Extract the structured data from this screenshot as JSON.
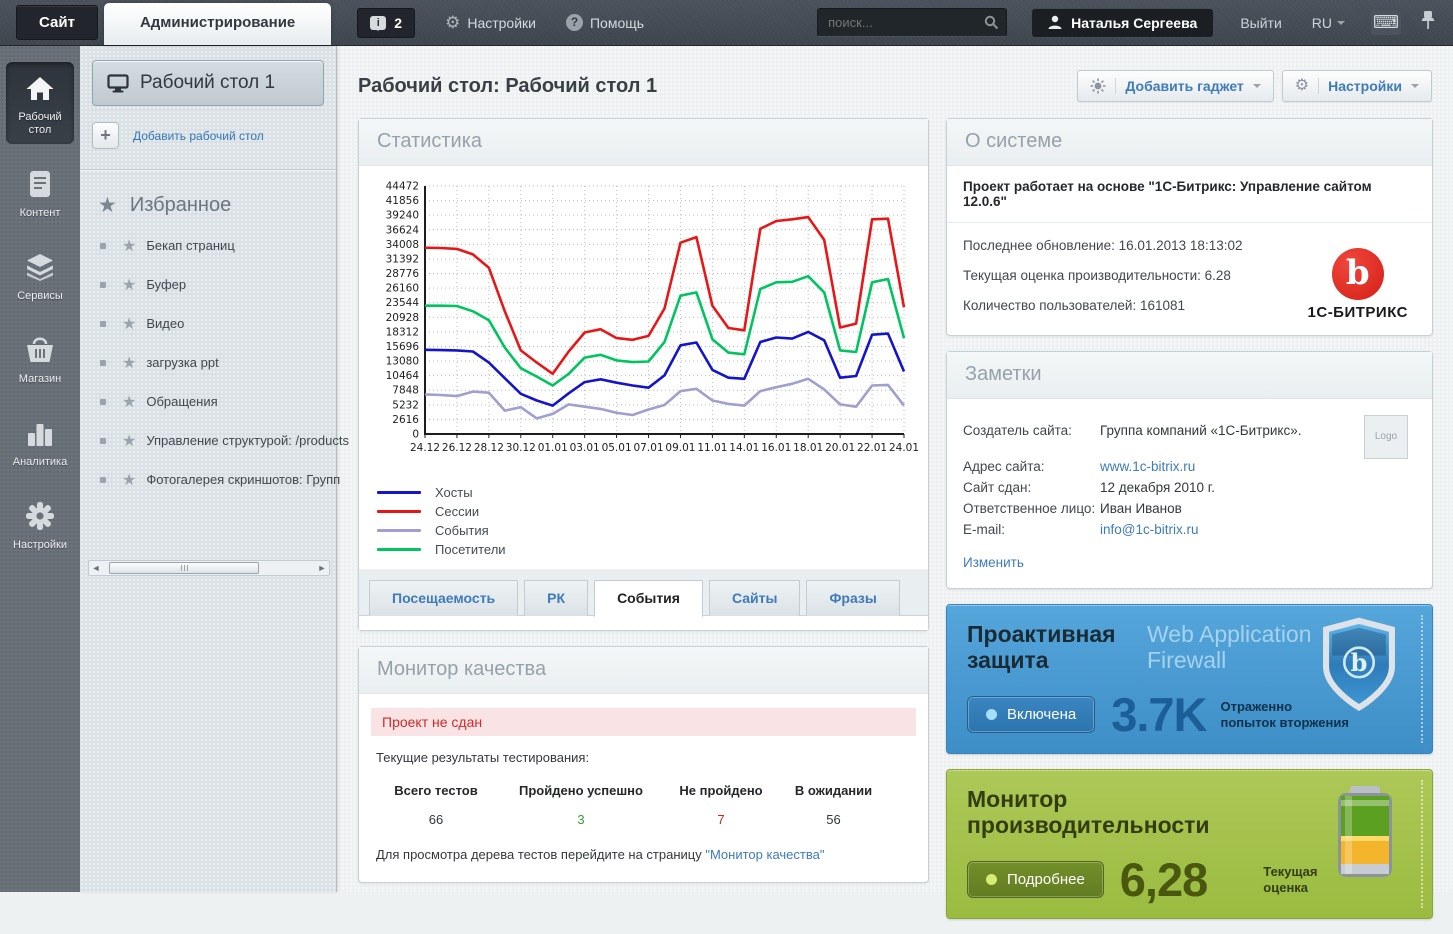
{
  "topbar": {
    "site_tab": "Сайт",
    "admin_tab": "Администрирование",
    "notifications_count": "2",
    "settings_label": "Настройки",
    "help_label": "Помощь",
    "search_placeholder": "поиск...",
    "user_name": "Наталья Сергеева",
    "logout_label": "Выйти",
    "lang_label": "RU"
  },
  "rail": {
    "items": [
      {
        "label": "Рабочий стол",
        "icon": "desktop-icon",
        "active": true
      },
      {
        "label": "Контент",
        "icon": "content-icon",
        "active": false
      },
      {
        "label": "Сервисы",
        "icon": "services-icon",
        "active": false
      },
      {
        "label": "Магазин",
        "icon": "shop-icon",
        "active": false
      },
      {
        "label": "Аналитика",
        "icon": "analytics-icon",
        "active": false
      },
      {
        "label": "Настройки",
        "icon": "settings-icon",
        "active": false
      }
    ]
  },
  "sidebar": {
    "desktop_name": "Рабочий стол 1",
    "add_desktop_label": "Добавить рабочий стол",
    "favorites_title": "Избранное",
    "favorites": [
      "Бекап страниц",
      "Буфер",
      "Видео",
      "загрузка ppt",
      "Обращения",
      "Управление структурой: /products",
      "Фотогалерея скриншотов: Групп"
    ]
  },
  "page": {
    "title": "Рабочий стол: Рабочий стол 1",
    "add_gadget_label": "Добавить гаджет",
    "settings_label": "Настройки"
  },
  "stats_widget": {
    "title": "Статистика",
    "tabs": [
      {
        "label": "Посещаемость",
        "active": false
      },
      {
        "label": "РК",
        "active": false
      },
      {
        "label": "События",
        "active": true
      },
      {
        "label": "Сайты",
        "active": false
      },
      {
        "label": "Фразы",
        "active": false
      }
    ]
  },
  "chart_data": {
    "type": "line",
    "title": "Статистика",
    "xlabel": "",
    "ylabel": "",
    "ylim": [
      0,
      44472
    ],
    "ytick_step": 2616,
    "grid": "dotted",
    "legend_position": "bottom-left",
    "x_labels": [
      "24.12",
      "26.12",
      "28.12",
      "30.12",
      "01.01",
      "03.01",
      "05.01",
      "07.01",
      "09.01",
      "11.01",
      "14.01",
      "16.01",
      "18.01",
      "20.01",
      "22.01",
      "24.01"
    ],
    "points_per_label_gap": 2,
    "series": [
      {
        "name": "Хосты",
        "color": "#1414cc",
        "values": [
          15100,
          15050,
          15000,
          14800,
          12800,
          10000,
          7200,
          6000,
          5100,
          7300,
          9300,
          9800,
          9200,
          8700,
          8300,
          10500,
          15900,
          16400,
          11500,
          10100,
          9900,
          16500,
          17300,
          17100,
          18300,
          16800,
          10100,
          10400,
          17800,
          18000,
          11200
        ]
      },
      {
        "name": "Сессии",
        "color": "#e81717",
        "values": [
          33400,
          33350,
          33200,
          32200,
          29800,
          22000,
          15000,
          12800,
          10800,
          14800,
          18200,
          18800,
          17200,
          16900,
          17600,
          22500,
          34300,
          35300,
          23000,
          19000,
          18600,
          36800,
          38200,
          38500,
          38900,
          34800,
          19100,
          19800,
          38500,
          38600,
          22700
        ]
      },
      {
        "name": "События",
        "color": "#9f9fd0",
        "values": [
          7100,
          7000,
          6800,
          7600,
          7400,
          4200,
          4800,
          2800,
          3600,
          5300,
          4900,
          4500,
          3800,
          3400,
          4400,
          5200,
          7700,
          8100,
          6000,
          5400,
          5100,
          7700,
          8400,
          9000,
          9900,
          8000,
          5300,
          4900,
          8700,
          8800,
          5100
        ]
      },
      {
        "name": "Посетители",
        "color": "#00c45e",
        "values": [
          23000,
          23000,
          22950,
          22000,
          20400,
          15500,
          11800,
          10300,
          8700,
          10800,
          13700,
          14200,
          13200,
          12900,
          13000,
          16500,
          24800,
          25400,
          17000,
          14600,
          14300,
          26000,
          27200,
          27300,
          28300,
          25400,
          15000,
          14700,
          27200,
          27800,
          17200
        ]
      }
    ]
  },
  "about_widget": {
    "title": "О системе",
    "line_bold": "Проект работает на основе \"1С-Битрикс: Управление сайтом 12.0.6\"",
    "rows": [
      "Последнее обновление: 16.01.2013 18:13:02",
      "Текущая оценка производительности: 6.28",
      "Количество пользователей: 161081"
    ],
    "logo_letter": "b",
    "brand": "1С-БИТРИКС",
    "brand_color": "#d9261c"
  },
  "notes_widget": {
    "title": "Заметки",
    "rows": [
      {
        "label": "Создатель сайта:",
        "value": "Группа компаний «1С-Битрикс».",
        "link": false,
        "first": true
      },
      {
        "label": "Адрес сайта:",
        "value": "www.1c-bitrix.ru",
        "link": true,
        "first": false
      },
      {
        "label": "Сайт сдан:",
        "value": "12 декабря 2010 г.",
        "link": false,
        "first": false
      },
      {
        "label": "Ответственное лицо:",
        "value": "Иван Иванов",
        "link": false,
        "first": false
      },
      {
        "label": "E-mail:",
        "value": "info@1c-bitrix.ru",
        "link": true,
        "first": false
      }
    ],
    "logo_placeholder": "Logo",
    "edit_label": "Изменить"
  },
  "security_widget": {
    "title": "Проактивная защита",
    "subtitle": "Web Application Firewall",
    "status_button": "Включена",
    "big_value": "3.7K",
    "caption_line1": "Отраженно",
    "caption_line2": "попыток вторжения",
    "accent": "#4798d1"
  },
  "performance_widget": {
    "title": "Монитор производительности",
    "button": "Подробнее",
    "big_value": "6,28",
    "caption_line1": "Текущая",
    "caption_line2": "оценка",
    "accent": "#a3c24a"
  },
  "quality_widget": {
    "title": "Монитор качества",
    "alert": "Проект не сдан",
    "alert_color": "#cf2a2a",
    "intro": "Текущие результаты тестирования:",
    "table": {
      "headers": [
        "Всего тестов",
        "Пройдено успешно",
        "Не пройдено",
        "В ожидании"
      ],
      "values": [
        "66",
        "3",
        "7",
        "56"
      ],
      "value_colors": [
        "#33383d",
        "#2ea32e",
        "#d42020",
        "#33383d"
      ]
    },
    "footer_text": "Для просмотра дерева тестов перейдите на страницу ",
    "footer_link": "\"Монитор качества\""
  }
}
